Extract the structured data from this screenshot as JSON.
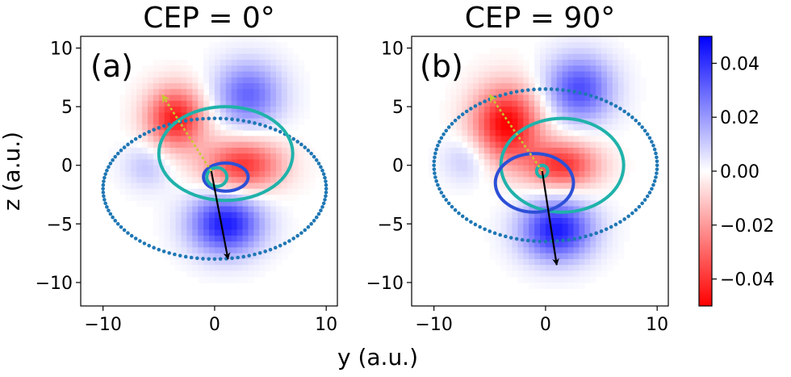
{
  "figure": {
    "ylabel": "z (a.u.)",
    "xlabel": "y (a.u.)"
  },
  "colorbar": {
    "ticks": [
      "0.04",
      "0.02",
      "0.00",
      "−0.02",
      "−0.04"
    ],
    "tick_values": [
      0.04,
      0.02,
      0.0,
      -0.02,
      -0.04
    ],
    "range": [
      -0.05,
      0.05
    ],
    "colormap": "bwr",
    "colors": {
      "low": "#ff0000",
      "mid": "#ffffff",
      "high": "#0000ff"
    }
  },
  "chart_data": [
    {
      "type": "heatmap",
      "title": "CEP = 0°",
      "panel_label": "(a)",
      "xlim": [
        -12,
        11
      ],
      "ylim": [
        -12,
        11
      ],
      "xticks": [
        -10,
        0,
        10
      ],
      "xtick_labels": [
        "−10",
        "0",
        "10"
      ],
      "yticks": [
        10,
        5,
        0,
        -5,
        -10
      ],
      "ytick_labels": [
        "10",
        "5",
        "0",
        "−5",
        "−10"
      ],
      "lobes": [
        {
          "sign": "negative",
          "center": [
            -3.5,
            4
          ],
          "radius": [
            2.6,
            2.6
          ],
          "value": -0.045
        },
        {
          "sign": "negative",
          "center": [
            2.5,
            0
          ],
          "radius": [
            3.5,
            2.2
          ],
          "value": -0.04
        },
        {
          "sign": "positive",
          "center": [
            3,
            6
          ],
          "radius": [
            3,
            2.8
          ],
          "value": 0.03
        },
        {
          "sign": "positive",
          "center": [
            1,
            -5
          ],
          "radius": [
            3.2,
            2.6
          ],
          "value": 0.045
        },
        {
          "sign": "positive",
          "center": [
            -6,
            0
          ],
          "radius": [
            2.2,
            2
          ],
          "value": 0.012
        }
      ],
      "curves": [
        {
          "style": "dotted",
          "center": [
            0,
            -2
          ],
          "radius": [
            10,
            6
          ],
          "color": "#1f77b4"
        },
        {
          "style": "solid",
          "center": [
            1,
            1
          ],
          "radius": [
            6,
            4
          ],
          "color": "#20b2aa"
        },
        {
          "style": "solid",
          "center": [
            1,
            -1
          ],
          "radius": [
            2,
            1.2
          ],
          "color": "#2c4fd6"
        },
        {
          "style": "solid",
          "center": [
            0.2,
            -1
          ],
          "radius": [
            0.9,
            0.8
          ],
          "color": "#20b2aa"
        }
      ],
      "arrows": [
        {
          "style": "dotted",
          "from": [
            -0.3,
            -0.5
          ],
          "to": [
            -4.7,
            6
          ],
          "color": "#c8c832"
        },
        {
          "style": "solid",
          "from": [
            -0.3,
            -0.5
          ],
          "to": [
            1.2,
            -8
          ],
          "color": "#000000"
        }
      ]
    },
    {
      "type": "heatmap",
      "title": "CEP = 90°",
      "panel_label": "(b)",
      "xlim": [
        -12,
        11
      ],
      "ylim": [
        -12,
        11
      ],
      "xticks": [
        -10,
        0,
        10
      ],
      "xtick_labels": [
        "−10",
        "0",
        "10"
      ],
      "yticks": [
        10,
        5,
        0,
        -5,
        -10
      ],
      "ytick_labels": [
        "10",
        "5",
        "0",
        "−5",
        "−10"
      ],
      "lobes": [
        {
          "sign": "negative",
          "center": [
            -3.5,
            3.5
          ],
          "radius": [
            3,
            3.2
          ],
          "value": -0.05
        },
        {
          "sign": "negative",
          "center": [
            1.5,
            0
          ],
          "radius": [
            3.2,
            2
          ],
          "value": -0.04
        },
        {
          "sign": "positive",
          "center": [
            3,
            6.5
          ],
          "radius": [
            3,
            2.8
          ],
          "value": 0.035
        },
        {
          "sign": "positive",
          "center": [
            1,
            -5.5
          ],
          "radius": [
            3.2,
            2.6
          ],
          "value": 0.045
        },
        {
          "sign": "positive",
          "center": [
            -7,
            0.5
          ],
          "radius": [
            2.2,
            2
          ],
          "value": 0.012
        }
      ],
      "curves": [
        {
          "style": "dotted",
          "center": [
            0,
            0
          ],
          "radius": [
            10,
            6.5
          ],
          "color": "#1f77b4"
        },
        {
          "style": "solid",
          "center": [
            1.5,
            0
          ],
          "radius": [
            5.5,
            4
          ],
          "color": "#20b2aa"
        },
        {
          "style": "solid",
          "center": [
            -1,
            -1.5
          ],
          "radius": [
            3.5,
            2.5
          ],
          "color": "#2c4fd6"
        },
        {
          "style": "solid",
          "center": [
            -0.3,
            -0.5
          ],
          "radius": [
            0.5,
            0.5
          ],
          "color": "#20b2aa"
        }
      ],
      "arrows": [
        {
          "style": "dotted",
          "from": [
            -0.3,
            -0.5
          ],
          "to": [
            -5,
            6
          ],
          "color": "#c8c832"
        },
        {
          "style": "solid",
          "from": [
            -0.3,
            -0.5
          ],
          "to": [
            1,
            -8.5
          ],
          "color": "#000000"
        }
      ]
    }
  ]
}
